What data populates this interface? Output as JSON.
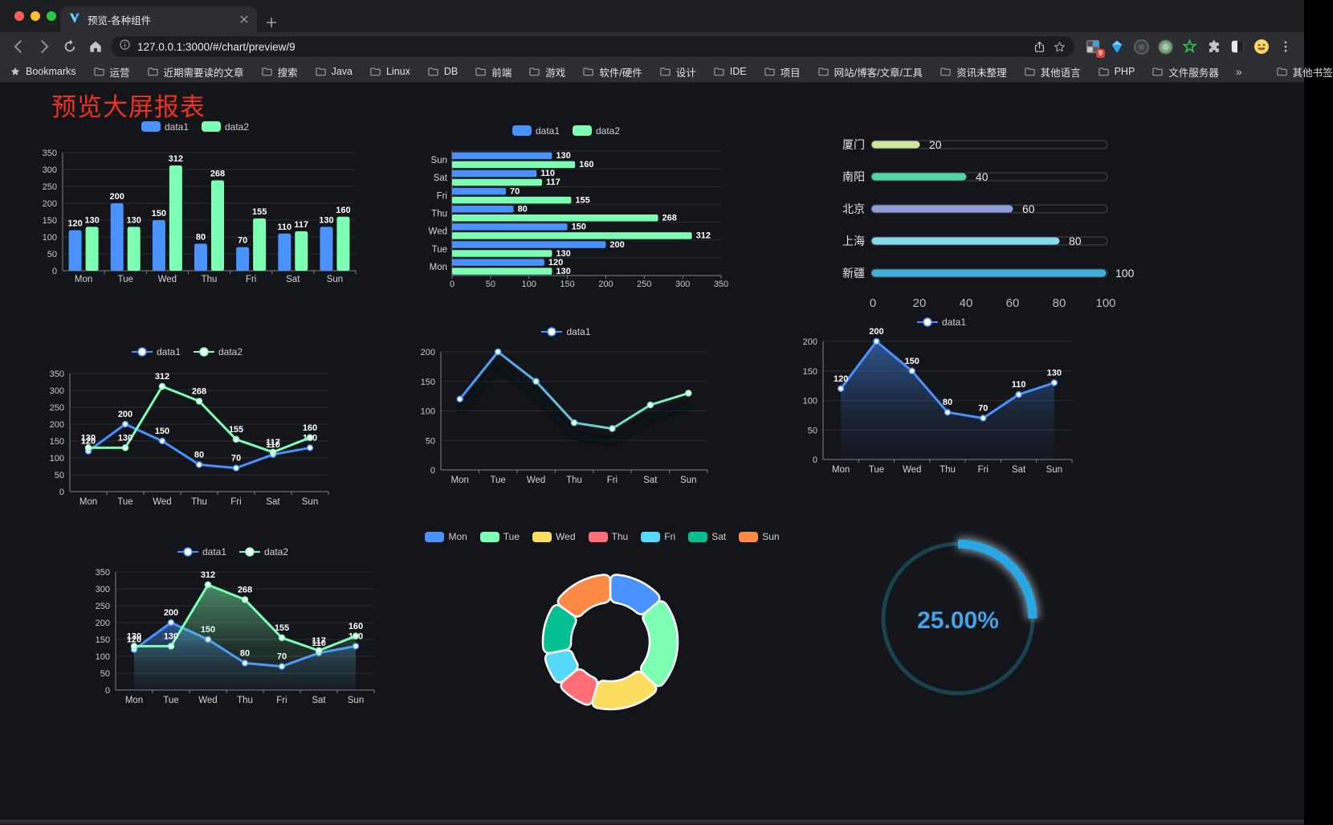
{
  "browser": {
    "tab": {
      "title": "预览-各种组件"
    },
    "url": "127.0.0.1:3000/#/chart/preview/9",
    "bookmarks_bar": {
      "label": "Bookmarks",
      "folders": [
        "运营",
        "近期需要读的文章",
        "搜索",
        "Java",
        "Linux",
        "DB",
        "前端",
        "游戏",
        "软件/硬件",
        "设计",
        "IDE",
        "项目",
        "网站/博客/文章/工具",
        "资讯未整理",
        "其他语言",
        "PHP",
        "文件服务器"
      ],
      "overflow": "»",
      "other": "其他书签"
    },
    "extensions": [
      {
        "name": "proxy-extension-icon",
        "badge": "9"
      },
      {
        "name": "gem-extension-icon"
      },
      {
        "name": "dark-circle-extension-icon"
      },
      {
        "name": "green-circle-extension-icon"
      },
      {
        "name": "green-star-extension-icon"
      },
      {
        "name": "puzzle-extensions-icon"
      },
      {
        "name": "contrast-extension-icon"
      },
      {
        "name": "emoji-avatar-icon"
      }
    ]
  },
  "page": {
    "title": "预览大屏报表",
    "title_color": "#ee3322",
    "background": "#14151a"
  },
  "palette": {
    "blue": "#4992ff",
    "green": "#7cffb2",
    "yellow": "#fddd60",
    "red": "#ff6e76",
    "cyan": "#58d9f9",
    "teal": "#05c091",
    "orange": "#ff8a45",
    "axis": "#7f8089",
    "grid": "#2c2d34",
    "tick_label": "#c8c9d0",
    "value_label": "#ffffff"
  },
  "chart_data": [
    {
      "type": "bar",
      "legend_position": "top",
      "grid": true,
      "categories": [
        "Mon",
        "Tue",
        "Wed",
        "Thu",
        "Fri",
        "Sat",
        "Sun"
      ],
      "series": [
        {
          "name": "data1",
          "color": "#4992ff",
          "values": [
            120,
            200,
            150,
            80,
            70,
            110,
            130
          ]
        },
        {
          "name": "data2",
          "color": "#7cffb2",
          "values": [
            130,
            130,
            312,
            268,
            155,
            117,
            160
          ]
        }
      ],
      "ylim": [
        0,
        350
      ],
      "ystep": 50,
      "value_labels": true
    },
    {
      "type": "hbar",
      "legend_position": "top",
      "grid": true,
      "categories": [
        "Mon",
        "Tue",
        "Wed",
        "Thu",
        "Fri",
        "Sat",
        "Sun"
      ],
      "categories_top_to_bottom": [
        "Sun",
        "Sat",
        "Fri",
        "Thu",
        "Wed",
        "Tue",
        "Mon"
      ],
      "series": [
        {
          "name": "data1",
          "color": "#4992ff",
          "values": [
            120,
            200,
            150,
            80,
            70,
            110,
            130
          ]
        },
        {
          "name": "data2",
          "color": "#7cffb2",
          "values": [
            130,
            130,
            312,
            268,
            155,
            117,
            160
          ]
        }
      ],
      "xlim": [
        0,
        350
      ],
      "xstep": 50,
      "value_labels": true
    },
    {
      "type": "progress",
      "items": [
        {
          "label": "厦门",
          "value": 20,
          "color": "#cde79e"
        },
        {
          "label": "南阳",
          "value": 40,
          "color": "#54d5a5"
        },
        {
          "label": "北京",
          "value": 60,
          "color": "#8f9ddb"
        },
        {
          "label": "上海",
          "value": 80,
          "color": "#85d8e8"
        },
        {
          "label": "新疆",
          "value": 100,
          "color": "#3fb0dc"
        }
      ],
      "xticks": [
        0,
        20,
        40,
        60,
        80,
        100
      ],
      "xlim": [
        0,
        100
      ]
    },
    {
      "type": "line",
      "legend_position": "top",
      "categories": [
        "Mon",
        "Tue",
        "Wed",
        "Thu",
        "Fri",
        "Sat",
        "Sun"
      ],
      "series": [
        {
          "name": "data1",
          "color": "#4992ff",
          "values": [
            120,
            200,
            150,
            80,
            70,
            110,
            130
          ]
        },
        {
          "name": "data2",
          "color": "#7cffb2",
          "values": [
            130,
            130,
            312,
            268,
            155,
            117,
            160
          ]
        }
      ],
      "ylim": [
        0,
        350
      ],
      "ystep": 50,
      "value_labels": true,
      "area": false
    },
    {
      "type": "gradline",
      "legend_position": "top",
      "categories": [
        "Mon",
        "Tue",
        "Wed",
        "Thu",
        "Fri",
        "Sat",
        "Sun"
      ],
      "series": [
        {
          "name": "data1",
          "color_start": "#4992ff",
          "color_end": "#7cffb2",
          "values": [
            120,
            200,
            150,
            80,
            70,
            110,
            130
          ]
        }
      ],
      "ylim": [
        0,
        200
      ],
      "ystep": 50,
      "value_labels": false,
      "shadow": true
    },
    {
      "type": "area",
      "legend_position": "top",
      "categories": [
        "Mon",
        "Tue",
        "Wed",
        "Thu",
        "Fri",
        "Sat",
        "Sun"
      ],
      "series": [
        {
          "name": "data1",
          "color": "#4992ff",
          "values": [
            120,
            200,
            150,
            80,
            70,
            110,
            130
          ]
        }
      ],
      "ylim": [
        0,
        200
      ],
      "ystep": 50,
      "value_labels": true
    },
    {
      "type": "line",
      "legend_position": "top",
      "categories": [
        "Mon",
        "Tue",
        "Wed",
        "Thu",
        "Fri",
        "Sat",
        "Sun"
      ],
      "series": [
        {
          "name": "data1",
          "color": "#4992ff",
          "values": [
            120,
            200,
            150,
            80,
            70,
            110,
            130
          ]
        },
        {
          "name": "data2",
          "color": "#7cffb2",
          "values": [
            130,
            130,
            312,
            268,
            155,
            117,
            160
          ]
        }
      ],
      "ylim": [
        0,
        350
      ],
      "ystep": 50,
      "value_labels": true,
      "area": true
    },
    {
      "type": "donut",
      "legend_position": "top",
      "slices": [
        {
          "label": "Mon",
          "value": 120,
          "color": "#4992ff"
        },
        {
          "label": "Tue",
          "value": 200,
          "color": "#7cffb2"
        },
        {
          "label": "Wed",
          "value": 150,
          "color": "#fddd60"
        },
        {
          "label": "Thu",
          "value": 80,
          "color": "#ff6e76"
        },
        {
          "label": "Fri",
          "value": 70,
          "color": "#58d9f9"
        },
        {
          "label": "Sat",
          "value": 110,
          "color": "#05c091"
        },
        {
          "label": "Sun",
          "value": 130,
          "color": "#ff8a45"
        }
      ],
      "border_color": "#ffffff"
    },
    {
      "type": "gauge",
      "label": "25.00%",
      "percent": 25,
      "color": "#29a7e3",
      "track_color": "#19444f",
      "text_color": "#3fa5e8"
    }
  ]
}
